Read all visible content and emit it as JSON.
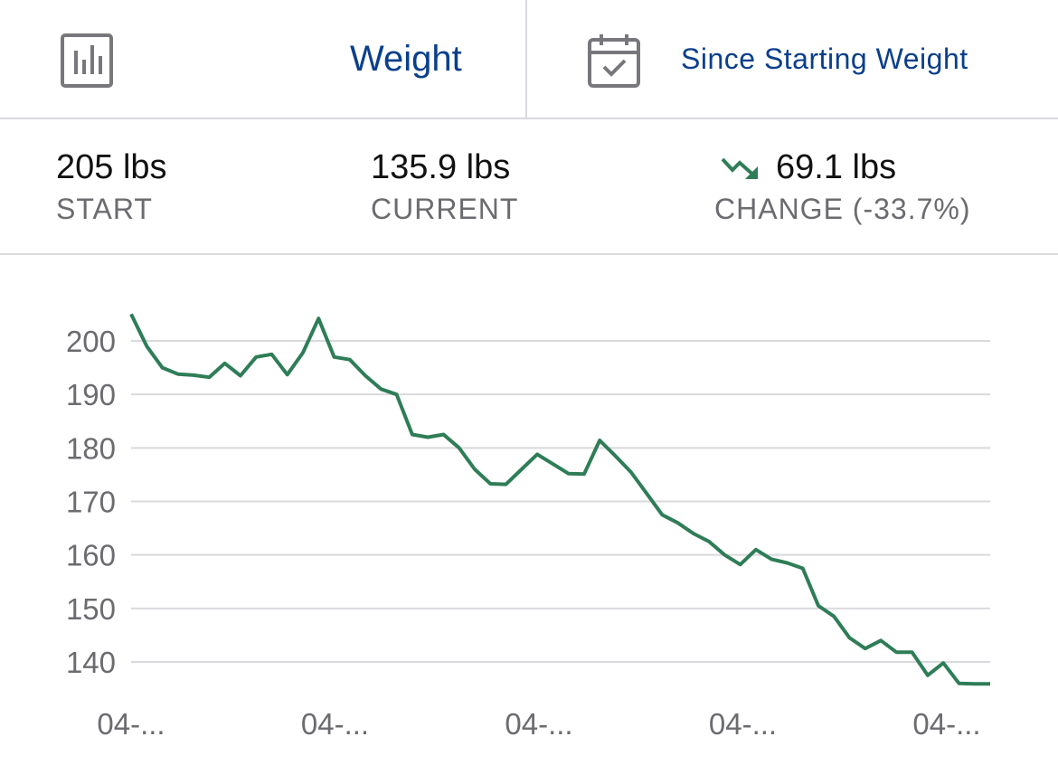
{
  "header": {
    "metric_label": "Weight",
    "range_label": "Since Starting Weight",
    "metric_icon": "bar-chart-icon",
    "range_icon": "calendar-check-icon"
  },
  "stats": {
    "start": {
      "value": "205 lbs",
      "label": "START"
    },
    "current": {
      "value": "135.9 lbs",
      "label": "CURRENT"
    },
    "change": {
      "value": "69.1 lbs",
      "label": "CHANGE (-33.7%)",
      "trend_icon": "trend-down-icon"
    }
  },
  "colors": {
    "accent": "#0a3f8c",
    "line": "#2e7d57",
    "grid": "#d9d9de",
    "muted_text": "#6b6b70"
  },
  "chart_data": {
    "type": "line",
    "title": "",
    "xlabel": "",
    "ylabel": "",
    "y_ticks": [
      140,
      150,
      160,
      170,
      180,
      190,
      200
    ],
    "x_tick_labels": [
      "04-...",
      "04-...",
      "04-...",
      "04-...",
      "04-..."
    ],
    "ylim": [
      135.9,
      205
    ],
    "grid": true,
    "series": [
      {
        "values": [
          205,
          199,
          195,
          193.8,
          193.6,
          193.2,
          195.8,
          193.5,
          197,
          197.5,
          193.7,
          197.8,
          204.2,
          197,
          196.5,
          193.5,
          191,
          190,
          182.5,
          182,
          182.5,
          180,
          176,
          173.3,
          173.2,
          176,
          178.8,
          177,
          175.2,
          175.1,
          181.4,
          178.5,
          175.5,
          171.5,
          167.5,
          166,
          164,
          162.5,
          160,
          158.2,
          161,
          159.2,
          158.5,
          157.5,
          150.5,
          148.5,
          144.5,
          142.5,
          144,
          141.8,
          141.8,
          137.5,
          139.8,
          136,
          135.9,
          135.9
        ]
      }
    ]
  }
}
